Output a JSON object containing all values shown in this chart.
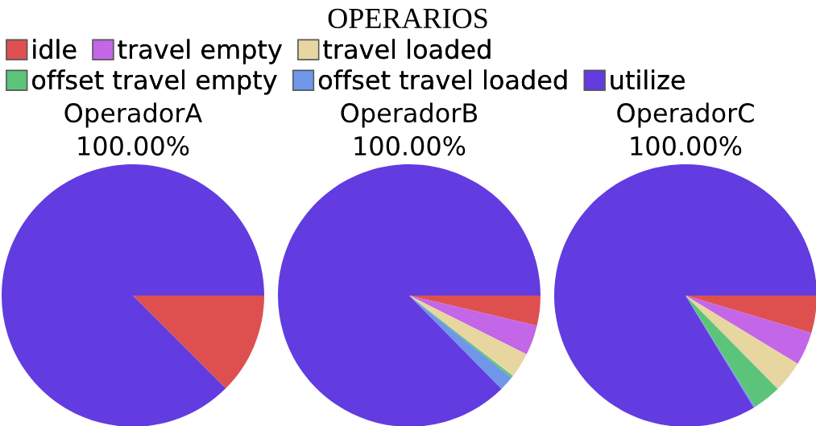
{
  "chart_data": {
    "type": "pie",
    "title": "OPERARIOS",
    "legend": "top",
    "categories": [
      "idle",
      "travel empty",
      "travel loaded",
      "offset travel empty",
      "offset travel loaded",
      "utilize"
    ],
    "colors": [
      "#de5050",
      "#c466e8",
      "#e8d6a0",
      "#5cc47a",
      "#6f96e8",
      "#623ce0"
    ],
    "series": [
      {
        "name": "OperadorA",
        "values": [
          12.5,
          0,
          0,
          0,
          0,
          87.5
        ]
      },
      {
        "name": "OperadorB",
        "values": [
          3.7,
          3.7,
          3.1,
          0.3,
          1.8,
          87.4
        ]
      },
      {
        "name": "OperadorC",
        "values": [
          4.6,
          4.1,
          3.9,
          3.5,
          0.2,
          83.7
        ]
      }
    ],
    "annotations": [
      "100.00%",
      "100.00%",
      "100.00%"
    ]
  }
}
